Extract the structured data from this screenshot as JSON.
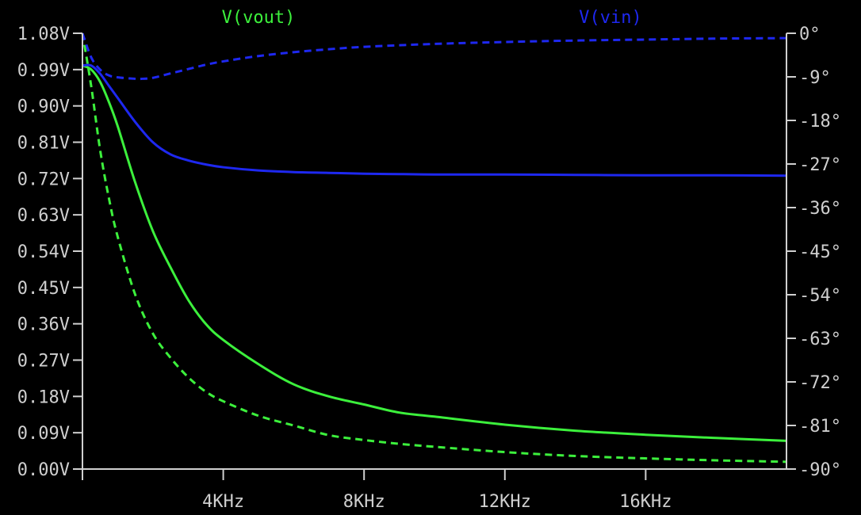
{
  "chart_data": {
    "type": "line",
    "title": "",
    "background": "#000000",
    "axis_color": "#d0d0d0",
    "grid": false,
    "x_axis": {
      "min": 0,
      "max": 20000,
      "ticks": [
        {
          "value": 4000,
          "label": "4KHz"
        },
        {
          "value": 8000,
          "label": "8KHz"
        },
        {
          "value": 12000,
          "label": "12KHz"
        },
        {
          "value": 16000,
          "label": "16KHz"
        }
      ]
    },
    "y_left": {
      "min": 0,
      "max": 1.08,
      "ticks": [
        {
          "value": 1.08,
          "label": "1.08V"
        },
        {
          "value": 0.99,
          "label": "0.99V"
        },
        {
          "value": 0.9,
          "label": "0.90V"
        },
        {
          "value": 0.81,
          "label": "0.81V"
        },
        {
          "value": 0.72,
          "label": "0.72V"
        },
        {
          "value": 0.63,
          "label": "0.63V"
        },
        {
          "value": 0.54,
          "label": "0.54V"
        },
        {
          "value": 0.45,
          "label": "0.45V"
        },
        {
          "value": 0.36,
          "label": "0.36V"
        },
        {
          "value": 0.27,
          "label": "0.27V"
        },
        {
          "value": 0.18,
          "label": "0.18V"
        },
        {
          "value": 0.09,
          "label": "0.09V"
        },
        {
          "value": 0.0,
          "label": "0.00V"
        }
      ]
    },
    "y_right": {
      "min": -90,
      "max": 0,
      "ticks": [
        {
          "value": 0,
          "label": "0°"
        },
        {
          "value": -9,
          "label": "-9°"
        },
        {
          "value": -18,
          "label": "-18°"
        },
        {
          "value": -27,
          "label": "-27°"
        },
        {
          "value": -36,
          "label": "-36°"
        },
        {
          "value": -45,
          "label": "-45°"
        },
        {
          "value": -54,
          "label": "-54°"
        },
        {
          "value": -63,
          "label": "-63°"
        },
        {
          "value": -72,
          "label": "-72°"
        },
        {
          "value": -81,
          "label": "-81°"
        },
        {
          "value": -90,
          "label": "-90°"
        }
      ]
    },
    "legend": [
      {
        "name": "V(vout)",
        "color": "#3cf03c"
      },
      {
        "name": "V(vin)",
        "color": "#1e28f0"
      }
    ],
    "series": [
      {
        "name": "V(vout)",
        "quantity": "magnitude",
        "axis": "left",
        "dashed": false,
        "color": "#3cf03c",
        "x": [
          0,
          250,
          500,
          750,
          1000,
          1500,
          2000,
          2500,
          3000,
          3500,
          4000,
          5000,
          6000,
          7000,
          8000,
          9000,
          10000,
          12000,
          14000,
          16000,
          18000,
          20000
        ],
        "y": [
          1.0,
          0.99,
          0.96,
          0.91,
          0.85,
          0.71,
          0.59,
          0.5,
          0.42,
          0.36,
          0.32,
          0.26,
          0.21,
          0.18,
          0.16,
          0.14,
          0.13,
          0.11,
          0.095,
          0.085,
          0.077,
          0.07
        ]
      },
      {
        "name": "V(vout)",
        "quantity": "phase",
        "axis": "right",
        "dashed": true,
        "color": "#3cf03c",
        "x": [
          0,
          250,
          500,
          750,
          1000,
          1500,
          2000,
          2500,
          3000,
          3500,
          4000,
          5000,
          6000,
          7000,
          8000,
          9000,
          10000,
          12000,
          14000,
          16000,
          18000,
          20000
        ],
        "y": [
          0,
          -11,
          -24,
          -34,
          -42,
          -54,
          -62,
          -67,
          -71,
          -74,
          -76,
          -79,
          -81,
          -83,
          -84,
          -84.8,
          -85.4,
          -86.5,
          -87.3,
          -87.8,
          -88.2,
          -88.5
        ]
      },
      {
        "name": "V(vin)",
        "quantity": "magnitude",
        "axis": "left",
        "dashed": false,
        "color": "#1e28f0",
        "x": [
          0,
          250,
          500,
          750,
          1000,
          1500,
          2000,
          2500,
          3000,
          3500,
          4000,
          5000,
          6000,
          7000,
          8000,
          9000,
          10000,
          12000,
          14000,
          16000,
          18000,
          20000
        ],
        "y": [
          1.0,
          1.0,
          0.98,
          0.95,
          0.92,
          0.86,
          0.81,
          0.78,
          0.765,
          0.755,
          0.748,
          0.74,
          0.736,
          0.734,
          0.732,
          0.731,
          0.73,
          0.73,
          0.729,
          0.728,
          0.728,
          0.727
        ]
      },
      {
        "name": "V(vin)",
        "quantity": "phase",
        "axis": "right",
        "dashed": true,
        "color": "#1e28f0",
        "x": [
          0,
          250,
          500,
          750,
          1000,
          1500,
          1700,
          2000,
          2500,
          3000,
          3500,
          4000,
          5000,
          6000,
          7000,
          8000,
          10000,
          12000,
          14000,
          16000,
          18000,
          20000
        ],
        "y": [
          0,
          -5,
          -7.5,
          -8.7,
          -9.1,
          -9.4,
          -9.4,
          -9.2,
          -8.3,
          -7.4,
          -6.5,
          -5.8,
          -4.7,
          -3.9,
          -3.3,
          -2.8,
          -2.2,
          -1.8,
          -1.5,
          -1.3,
          -1.1,
          -1.0
        ]
      }
    ]
  }
}
